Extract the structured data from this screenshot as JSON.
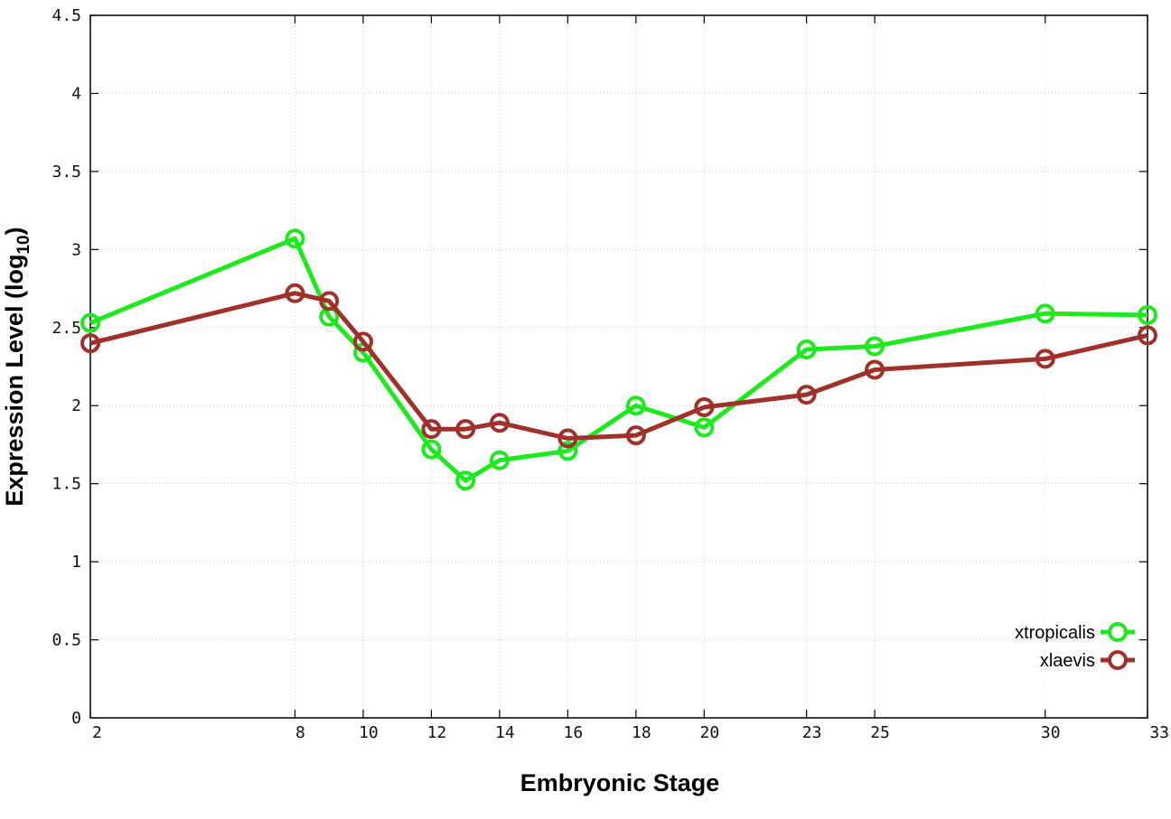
{
  "chart_data": {
    "type": "line",
    "xlabel": "Embryonic Stage",
    "ylabel_main": "Expression Level (log",
    "ylabel_sub": "10",
    "ylabel_close": ")",
    "ylim": [
      0,
      4.5
    ],
    "y_ticks": [
      0,
      0.5,
      1,
      1.5,
      2,
      2.5,
      3,
      3.5,
      4,
      4.5
    ],
    "y_tick_labels": [
      "0",
      "0.5",
      "1",
      "1.5",
      "2",
      "2.5",
      "3",
      "3.5",
      "4",
      "4.5"
    ],
    "x_ticks": [
      2,
      8,
      10,
      12,
      14,
      16,
      18,
      20,
      23,
      25,
      30,
      33
    ],
    "x_tick_labels": [
      "2",
      "8",
      "10",
      "12",
      "14",
      "16",
      "18",
      "20",
      "23",
      "25",
      "30",
      "33"
    ],
    "grid": true,
    "legend_position": "bottom-right",
    "series": [
      {
        "name": "xtropicalis",
        "color": "#1ee81e",
        "x": [
          2,
          8,
          9,
          10,
          12,
          13,
          14,
          16,
          18,
          20,
          23,
          25,
          30,
          33
        ],
        "y": [
          2.53,
          3.07,
          2.57,
          2.34,
          1.72,
          1.52,
          1.65,
          1.71,
          2.0,
          1.86,
          2.36,
          2.38,
          2.59,
          2.58
        ]
      },
      {
        "name": "xlaevis",
        "color": "#a0302a",
        "x": [
          2,
          8,
          9,
          10,
          12,
          13,
          14,
          16,
          18,
          20,
          23,
          25,
          30,
          33
        ],
        "y": [
          2.4,
          2.72,
          2.67,
          2.41,
          1.85,
          1.85,
          1.89,
          1.79,
          1.81,
          1.99,
          2.07,
          2.23,
          2.3,
          2.45
        ]
      }
    ]
  }
}
